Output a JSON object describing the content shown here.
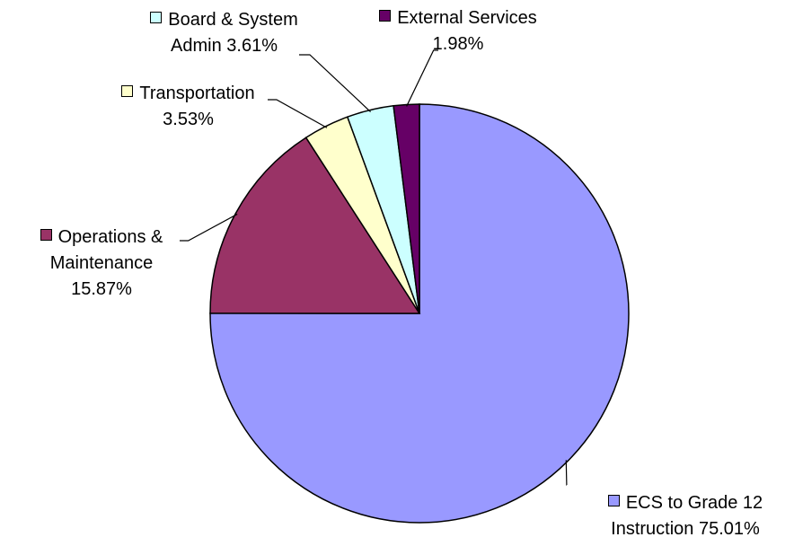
{
  "chart_data": {
    "type": "pie",
    "categories": [
      "ECS to Grade 12 Instruction",
      "Operations & Maintenance",
      "Transportation",
      "Board & System Admin",
      "External Services"
    ],
    "values": [
      75.01,
      15.87,
      3.53,
      3.61,
      1.98
    ],
    "value_labels": [
      "75.01%",
      "15.87%",
      "3.53%",
      "3.61%",
      "1.98%"
    ],
    "colors": [
      "#9999ff",
      "#993366",
      "#ffffcc",
      "#ccffff",
      "#660066"
    ]
  }
}
